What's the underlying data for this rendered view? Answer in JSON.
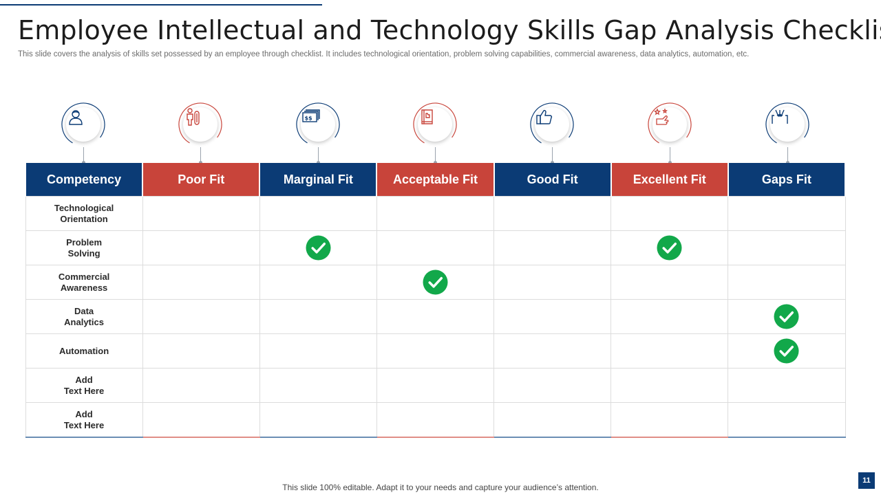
{
  "slide": {
    "title": "Employee Intellectual and Technology Skills Gap Analysis Checklist",
    "subtitle": "This slide covers the analysis of skills set possessed by an employee through checklist. It includes technological orientation, problem solving capabilities, commercial awareness, data analytics, automation, etc.",
    "footer": "This slide 100% editable. Adapt it to your needs and capture your audience’s attention.",
    "page_number": "11"
  },
  "colors": {
    "blue": "#0b3b75",
    "red": "#c8443a",
    "check_green": "#12a84a"
  },
  "icons": [
    "user-icon",
    "worker-icon",
    "money-icon",
    "book-icon",
    "thumbs-up-icon",
    "hand-star-icon",
    "arrows-icon"
  ],
  "table": {
    "headers": [
      "Competency",
      "Poor Fit",
      "Marginal Fit",
      "Acceptable Fit",
      "Good Fit",
      "Excellent Fit",
      "Gaps Fit"
    ],
    "rows": [
      {
        "line1": "Technological",
        "line2": "Orientation",
        "checks": [
          false,
          false,
          false,
          false,
          false,
          false
        ]
      },
      {
        "line1": "Problem",
        "line2": "Solving",
        "checks": [
          false,
          true,
          false,
          false,
          true,
          false
        ]
      },
      {
        "line1": "Commercial",
        "line2": "Awareness",
        "checks": [
          false,
          false,
          true,
          false,
          false,
          false
        ]
      },
      {
        "line1": "Data",
        "line2": "Analytics",
        "checks": [
          false,
          false,
          false,
          false,
          false,
          true
        ]
      },
      {
        "line1": "Automation",
        "line2": "",
        "checks": [
          false,
          false,
          false,
          false,
          false,
          true
        ]
      },
      {
        "line1": "Add",
        "line2": "Text Here",
        "checks": [
          false,
          false,
          false,
          false,
          false,
          false
        ]
      },
      {
        "line1": "Add",
        "line2": "Text Here",
        "checks": [
          false,
          false,
          false,
          false,
          false,
          false
        ]
      }
    ]
  }
}
